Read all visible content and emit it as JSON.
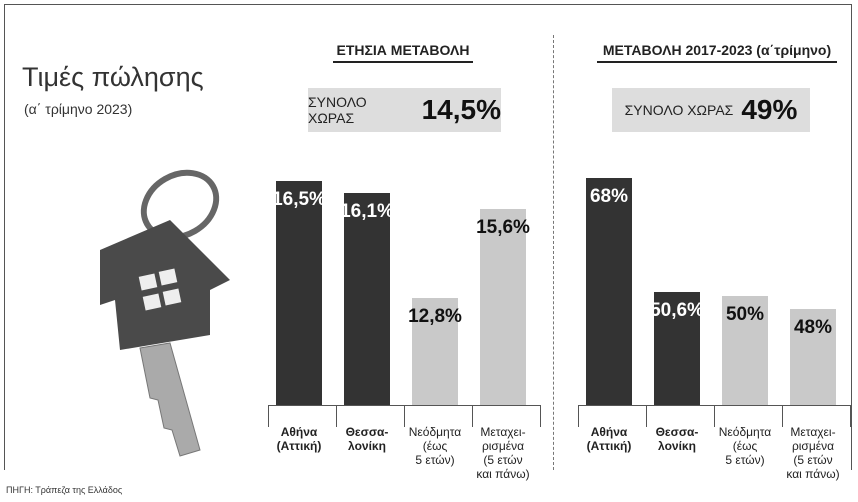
{
  "title": "Τιμές πώλησης",
  "subtitle": "(α΄ τρίμηνο 2023)",
  "source": "ΠΗΓΗ: Τράπεζα της Ελλάδος",
  "chart_data": [
    {
      "type": "bar",
      "title": "ΕΤΗΣΙΑ ΜΕΤΑΒΟΛΗ",
      "total_text": "ΣΥΝΟΛΟ ΧΩΡΑΣ",
      "total": "14,5%",
      "categories": [
        "Αθήνα\n(Αττική)",
        "Θεσσα-\nλονίκη",
        "Νεόδμητα\n(έως\n5 ετών)",
        "Μεταχει-\nρισμένα\n(5 ετών\nκαι πάνω)"
      ],
      "values": [
        16.5,
        16.1,
        12.8,
        15.6
      ],
      "value_labels": [
        "16,5%",
        "16,1%",
        "12,8%",
        "15,6%"
      ],
      "colors": [
        "#333333",
        "#333333",
        "#c9c9c9",
        "#c9c9c9"
      ],
      "ylim": [
        9.4,
        17
      ]
    },
    {
      "type": "bar",
      "title": "ΜΕΤΑΒΟΛΗ 2017-2023 (α΄τρίμηνο)",
      "total_text": "ΣΥΝΟΛΟ ΧΩΡΑΣ",
      "total": "49%",
      "categories": [
        "Αθήνα\n(Αττική)",
        "Θεσσα-\nλονίκη",
        "Νεόδμητα\n(έως\n5 ετών)",
        "Μεταχει-\nρισμένα\n(5 ετών\nκαι πάνω)"
      ],
      "values": [
        68,
        50.6,
        50,
        48
      ],
      "value_labels": [
        "68%",
        "50,6%",
        "50%",
        "48%"
      ],
      "colors": [
        "#333333",
        "#333333",
        "#c9c9c9",
        "#c9c9c9"
      ],
      "ylim": [
        33.4,
        70
      ]
    }
  ]
}
